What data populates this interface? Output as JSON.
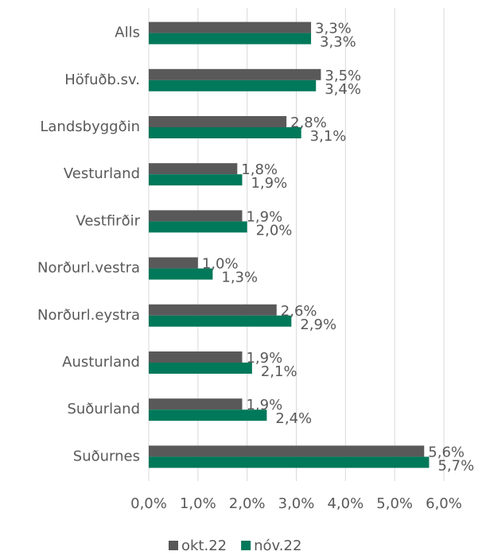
{
  "chart_data": {
    "type": "hbar",
    "categories": [
      "Alls",
      "Höfuðb.sv.",
      "Landsbyggðin",
      "Vesturland",
      "Vestfirðir",
      "Norðurl.vestra",
      "Norðurl.eystra",
      "Austurland",
      "Suðurland",
      "Suðurnes"
    ],
    "series": [
      {
        "name": "okt.22",
        "color": "#595959",
        "values": [
          3.3,
          3.5,
          2.8,
          1.8,
          1.9,
          1.0,
          2.6,
          1.9,
          1.9,
          5.6
        ],
        "value_labels": [
          "3,3%",
          "3,5%",
          "2,8%",
          "1,8%",
          "1,9%",
          "1,0%",
          "2,6%",
          "1,9%",
          "1,9%",
          "5,6%"
        ]
      },
      {
        "name": "nóv.22",
        "color": "#00785a",
        "values": [
          3.3,
          3.4,
          3.1,
          1.9,
          2.0,
          1.3,
          2.9,
          2.1,
          2.4,
          5.7
        ],
        "value_labels": [
          "3,3%",
          "3,4%",
          "3,1%",
          "1,9%",
          "2,0%",
          "1,3%",
          "2,9%",
          "2,1%",
          "2,4%",
          "5,7%"
        ]
      }
    ],
    "xlim": [
      0,
      6
    ],
    "xticks": [
      {
        "value": 0,
        "label": "0,0%"
      },
      {
        "value": 1,
        "label": "1,0%"
      },
      {
        "value": 2,
        "label": "2,0%"
      },
      {
        "value": 3,
        "label": "3,0%"
      },
      {
        "value": 4,
        "label": "4,0%"
      },
      {
        "value": 5,
        "label": "5,0%"
      },
      {
        "value": 6,
        "label": "6,0%"
      }
    ],
    "grid": true,
    "legend": "bottom"
  }
}
